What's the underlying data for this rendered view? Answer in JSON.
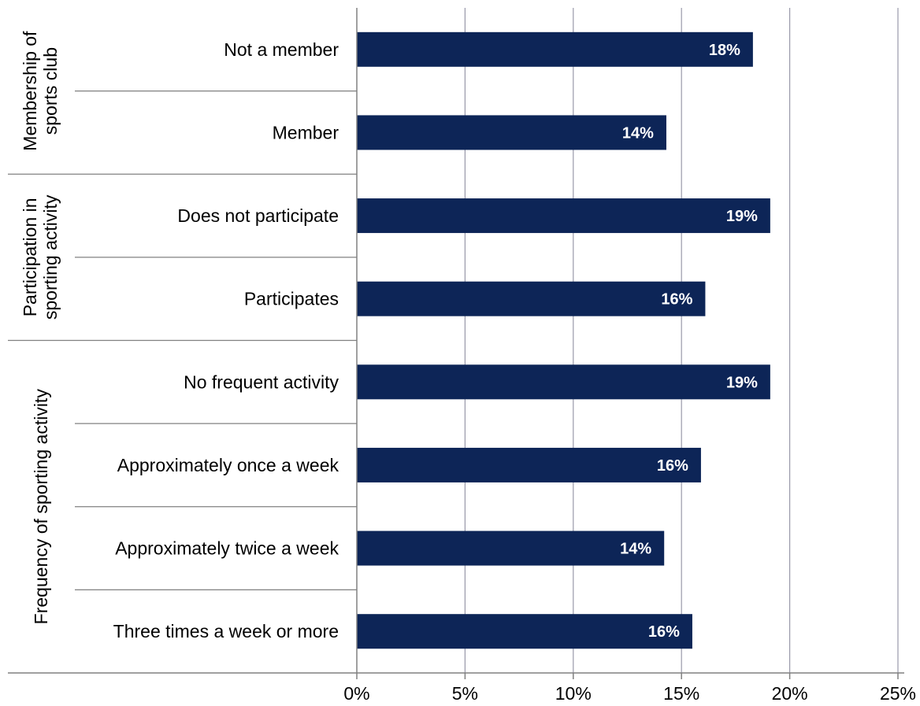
{
  "chart_data": {
    "type": "bar",
    "orientation": "horizontal",
    "groups": [
      {
        "name": "Membership of sports club",
        "categories": [
          "Not a member",
          "Member"
        ]
      },
      {
        "name": "Participation in sporting activity",
        "categories": [
          "Does not participate",
          "Participates"
        ]
      },
      {
        "name": "Frequency of sporting activity",
        "categories": [
          "No frequent activity",
          "Approximately once a week",
          "Approximately twice a week",
          "Three times a week or more"
        ]
      }
    ],
    "categories": [
      "Not a member",
      "Member",
      "Does not participate",
      "Participates",
      "No frequent activity",
      "Approximately once a week",
      "Approximately twice a week",
      "Three times a week or more"
    ],
    "values": [
      18.3,
      14.3,
      19.1,
      16.1,
      19.1,
      15.9,
      14.2,
      15.5
    ],
    "data_labels": [
      "18%",
      "14%",
      "19%",
      "16%",
      "19%",
      "16%",
      "14%",
      "16%"
    ],
    "xlim": [
      0,
      25
    ],
    "xticks": [
      0,
      5,
      10,
      15,
      20,
      25
    ],
    "xtick_labels": [
      "0%",
      "5%",
      "10%",
      "15%",
      "20%",
      "25%"
    ],
    "title": "",
    "xlabel": "",
    "ylabel": "",
    "grid": "vertical",
    "bar_color": "#0d2557",
    "grid_color": "#9999aa"
  }
}
